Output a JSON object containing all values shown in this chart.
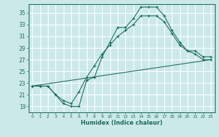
{
  "xlabel": "Humidex (Indice chaleur)",
  "ylabel": "",
  "bg_color": "#cce9e9",
  "grid_color": "#ffffff",
  "line_color": "#1a6b5a",
  "xlim": [
    -0.5,
    23.5
  ],
  "ylim": [
    18.0,
    36.5
  ],
  "yticks": [
    19,
    21,
    23,
    25,
    27,
    29,
    31,
    33,
    35
  ],
  "xticks": [
    0,
    1,
    2,
    3,
    4,
    5,
    6,
    7,
    8,
    9,
    10,
    11,
    12,
    13,
    14,
    15,
    16,
    17,
    18,
    19,
    20,
    21,
    22,
    23
  ],
  "line1_x": [
    0,
    1,
    2,
    3,
    4,
    5,
    6,
    7,
    8,
    9,
    10,
    11,
    12,
    13,
    14,
    15,
    16,
    17,
    18,
    19,
    20,
    21,
    22,
    23
  ],
  "line1_y": [
    22.5,
    22.5,
    22.5,
    21.0,
    19.5,
    19.0,
    19.0,
    23.5,
    24.0,
    27.5,
    30.0,
    32.5,
    32.5,
    34.0,
    36.0,
    36.0,
    36.0,
    34.5,
    32.0,
    30.0,
    28.5,
    28.5,
    27.5,
    27.5
  ],
  "line2_x": [
    0,
    1,
    2,
    3,
    4,
    5,
    6,
    7,
    8,
    9,
    10,
    11,
    12,
    13,
    14,
    15,
    16,
    17,
    18,
    19,
    20,
    21,
    22,
    23
  ],
  "line2_y": [
    22.5,
    22.5,
    22.5,
    21.0,
    20.0,
    19.5,
    21.5,
    24.0,
    26.0,
    28.0,
    29.5,
    31.0,
    32.0,
    33.0,
    34.5,
    34.5,
    34.5,
    33.5,
    31.5,
    29.5,
    28.5,
    28.0,
    27.0,
    27.0
  ],
  "line3_x": [
    0,
    23
  ],
  "line3_y": [
    22.5,
    27.0
  ]
}
